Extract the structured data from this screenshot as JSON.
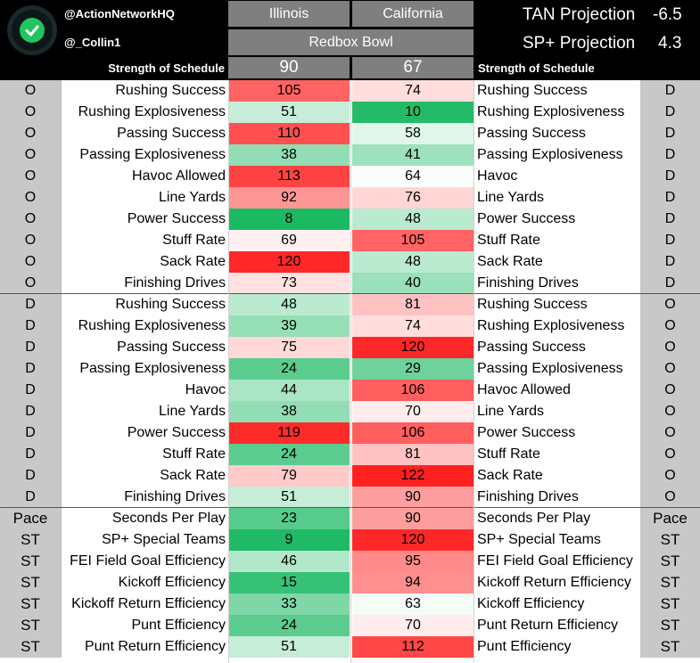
{
  "header": {
    "handle1": "@ActionNetworkHQ",
    "handle2": "@_Collin1",
    "team_left": "Illinois",
    "team_right": "California",
    "game": "Redbox Bowl",
    "tan_label": "TAN Projection",
    "tan_value": "-6.5",
    "sp_label": "SP+ Projection",
    "sp_value": "4.3",
    "sos_label": "Strength of Schedule",
    "sos_left": "90",
    "sos_right": "67"
  },
  "icons": {
    "logo": "check-circle-icon"
  },
  "colors": {
    "header_bg": "#000000",
    "box_gray": "#7f7f7f",
    "side_gray": "#c8c8c8",
    "scale_best": "#00b050",
    "scale_mid": "#ffffff",
    "scale_worst": "#ff0000"
  },
  "scale": {
    "min": 1,
    "max": 130
  },
  "rows": [
    {
      "left_side": "O",
      "left_label": "Rushing Success",
      "left_val": 105,
      "right_val": 74,
      "right_label": "Rushing Success",
      "right_side": "D"
    },
    {
      "left_side": "O",
      "left_label": "Rushing Explosiveness",
      "left_val": 51,
      "right_val": 10,
      "right_label": "Rushing Explosiveness",
      "right_side": "D"
    },
    {
      "left_side": "O",
      "left_label": "Passing Success",
      "left_val": 110,
      "right_val": 58,
      "right_label": "Passing Success",
      "right_side": "D"
    },
    {
      "left_side": "O",
      "left_label": "Passing Explosiveness",
      "left_val": 38,
      "right_val": 41,
      "right_label": "Passing Explosiveness",
      "right_side": "D"
    },
    {
      "left_side": "O",
      "left_label": "Havoc Allowed",
      "left_val": 113,
      "right_val": 64,
      "right_label": "Havoc",
      "right_side": "D"
    },
    {
      "left_side": "O",
      "left_label": "Line Yards",
      "left_val": 92,
      "right_val": 76,
      "right_label": "Line Yards",
      "right_side": "D"
    },
    {
      "left_side": "O",
      "left_label": "Power Success",
      "left_val": 8,
      "right_val": 48,
      "right_label": "Power Success",
      "right_side": "D"
    },
    {
      "left_side": "O",
      "left_label": "Stuff Rate",
      "left_val": 69,
      "right_val": 105,
      "right_label": "Stuff Rate",
      "right_side": "D"
    },
    {
      "left_side": "O",
      "left_label": "Sack Rate",
      "left_val": 120,
      "right_val": 48,
      "right_label": "Sack Rate",
      "right_side": "D"
    },
    {
      "left_side": "O",
      "left_label": "Finishing Drives",
      "left_val": 73,
      "right_val": 40,
      "right_label": "Finishing Drives",
      "right_side": "D"
    },
    {
      "left_side": "D",
      "left_label": "Rushing Success",
      "left_val": 48,
      "right_val": 81,
      "right_label": "Rushing Success",
      "right_side": "O"
    },
    {
      "left_side": "D",
      "left_label": "Rushing Explosiveness",
      "left_val": 39,
      "right_val": 74,
      "right_label": "Rushing Explosiveness",
      "right_side": "O"
    },
    {
      "left_side": "D",
      "left_label": "Passing Success",
      "left_val": 75,
      "right_val": 120,
      "right_label": "Passing Success",
      "right_side": "O"
    },
    {
      "left_side": "D",
      "left_label": "Passing Explosiveness",
      "left_val": 24,
      "right_val": 29,
      "right_label": "Passing Explosiveness",
      "right_side": "O"
    },
    {
      "left_side": "D",
      "left_label": "Havoc",
      "left_val": 44,
      "right_val": 106,
      "right_label": "Havoc Allowed",
      "right_side": "O"
    },
    {
      "left_side": "D",
      "left_label": "Line Yards",
      "left_val": 38,
      "right_val": 70,
      "right_label": "Line Yards",
      "right_side": "O"
    },
    {
      "left_side": "D",
      "left_label": "Power Success",
      "left_val": 119,
      "right_val": 106,
      "right_label": "Power Success",
      "right_side": "O"
    },
    {
      "left_side": "D",
      "left_label": "Stuff Rate",
      "left_val": 24,
      "right_val": 81,
      "right_label": "Stuff Rate",
      "right_side": "O"
    },
    {
      "left_side": "D",
      "left_label": "Sack Rate",
      "left_val": 79,
      "right_val": 122,
      "right_label": "Sack Rate",
      "right_side": "O"
    },
    {
      "left_side": "D",
      "left_label": "Finishing Drives",
      "left_val": 51,
      "right_val": 90,
      "right_label": "Finishing Drives",
      "right_side": "O"
    },
    {
      "left_side": "Pace",
      "left_label": "Seconds Per Play",
      "left_val": 23,
      "right_val": 90,
      "right_label": "Seconds Per Play",
      "right_side": "Pace"
    },
    {
      "left_side": "ST",
      "left_label": "SP+ Special Teams",
      "left_val": 9,
      "right_val": 120,
      "right_label": "SP+ Special Teams",
      "right_side": "ST"
    },
    {
      "left_side": "ST",
      "left_label": "FEI Field Goal Efficiency",
      "left_val": 46,
      "right_val": 95,
      "right_label": "FEI Field Goal Efficiency",
      "right_side": "ST"
    },
    {
      "left_side": "ST",
      "left_label": "Kickoff Efficiency",
      "left_val": 15,
      "right_val": 94,
      "right_label": "Kickoff Return Efficiency",
      "right_side": "ST"
    },
    {
      "left_side": "ST",
      "left_label": "Kickoff Return Efficiency",
      "left_val": 33,
      "right_val": 63,
      "right_label": "Kickoff Efficiency",
      "right_side": "ST"
    },
    {
      "left_side": "ST",
      "left_label": "Punt Efficiency",
      "left_val": 24,
      "right_val": 70,
      "right_label": "Punt Return Efficiency",
      "right_side": "ST"
    },
    {
      "left_side": "ST",
      "left_label": "Punt Return Efficiency",
      "left_val": 51,
      "right_val": 112,
      "right_label": "Punt Efficiency",
      "right_side": "ST"
    }
  ]
}
